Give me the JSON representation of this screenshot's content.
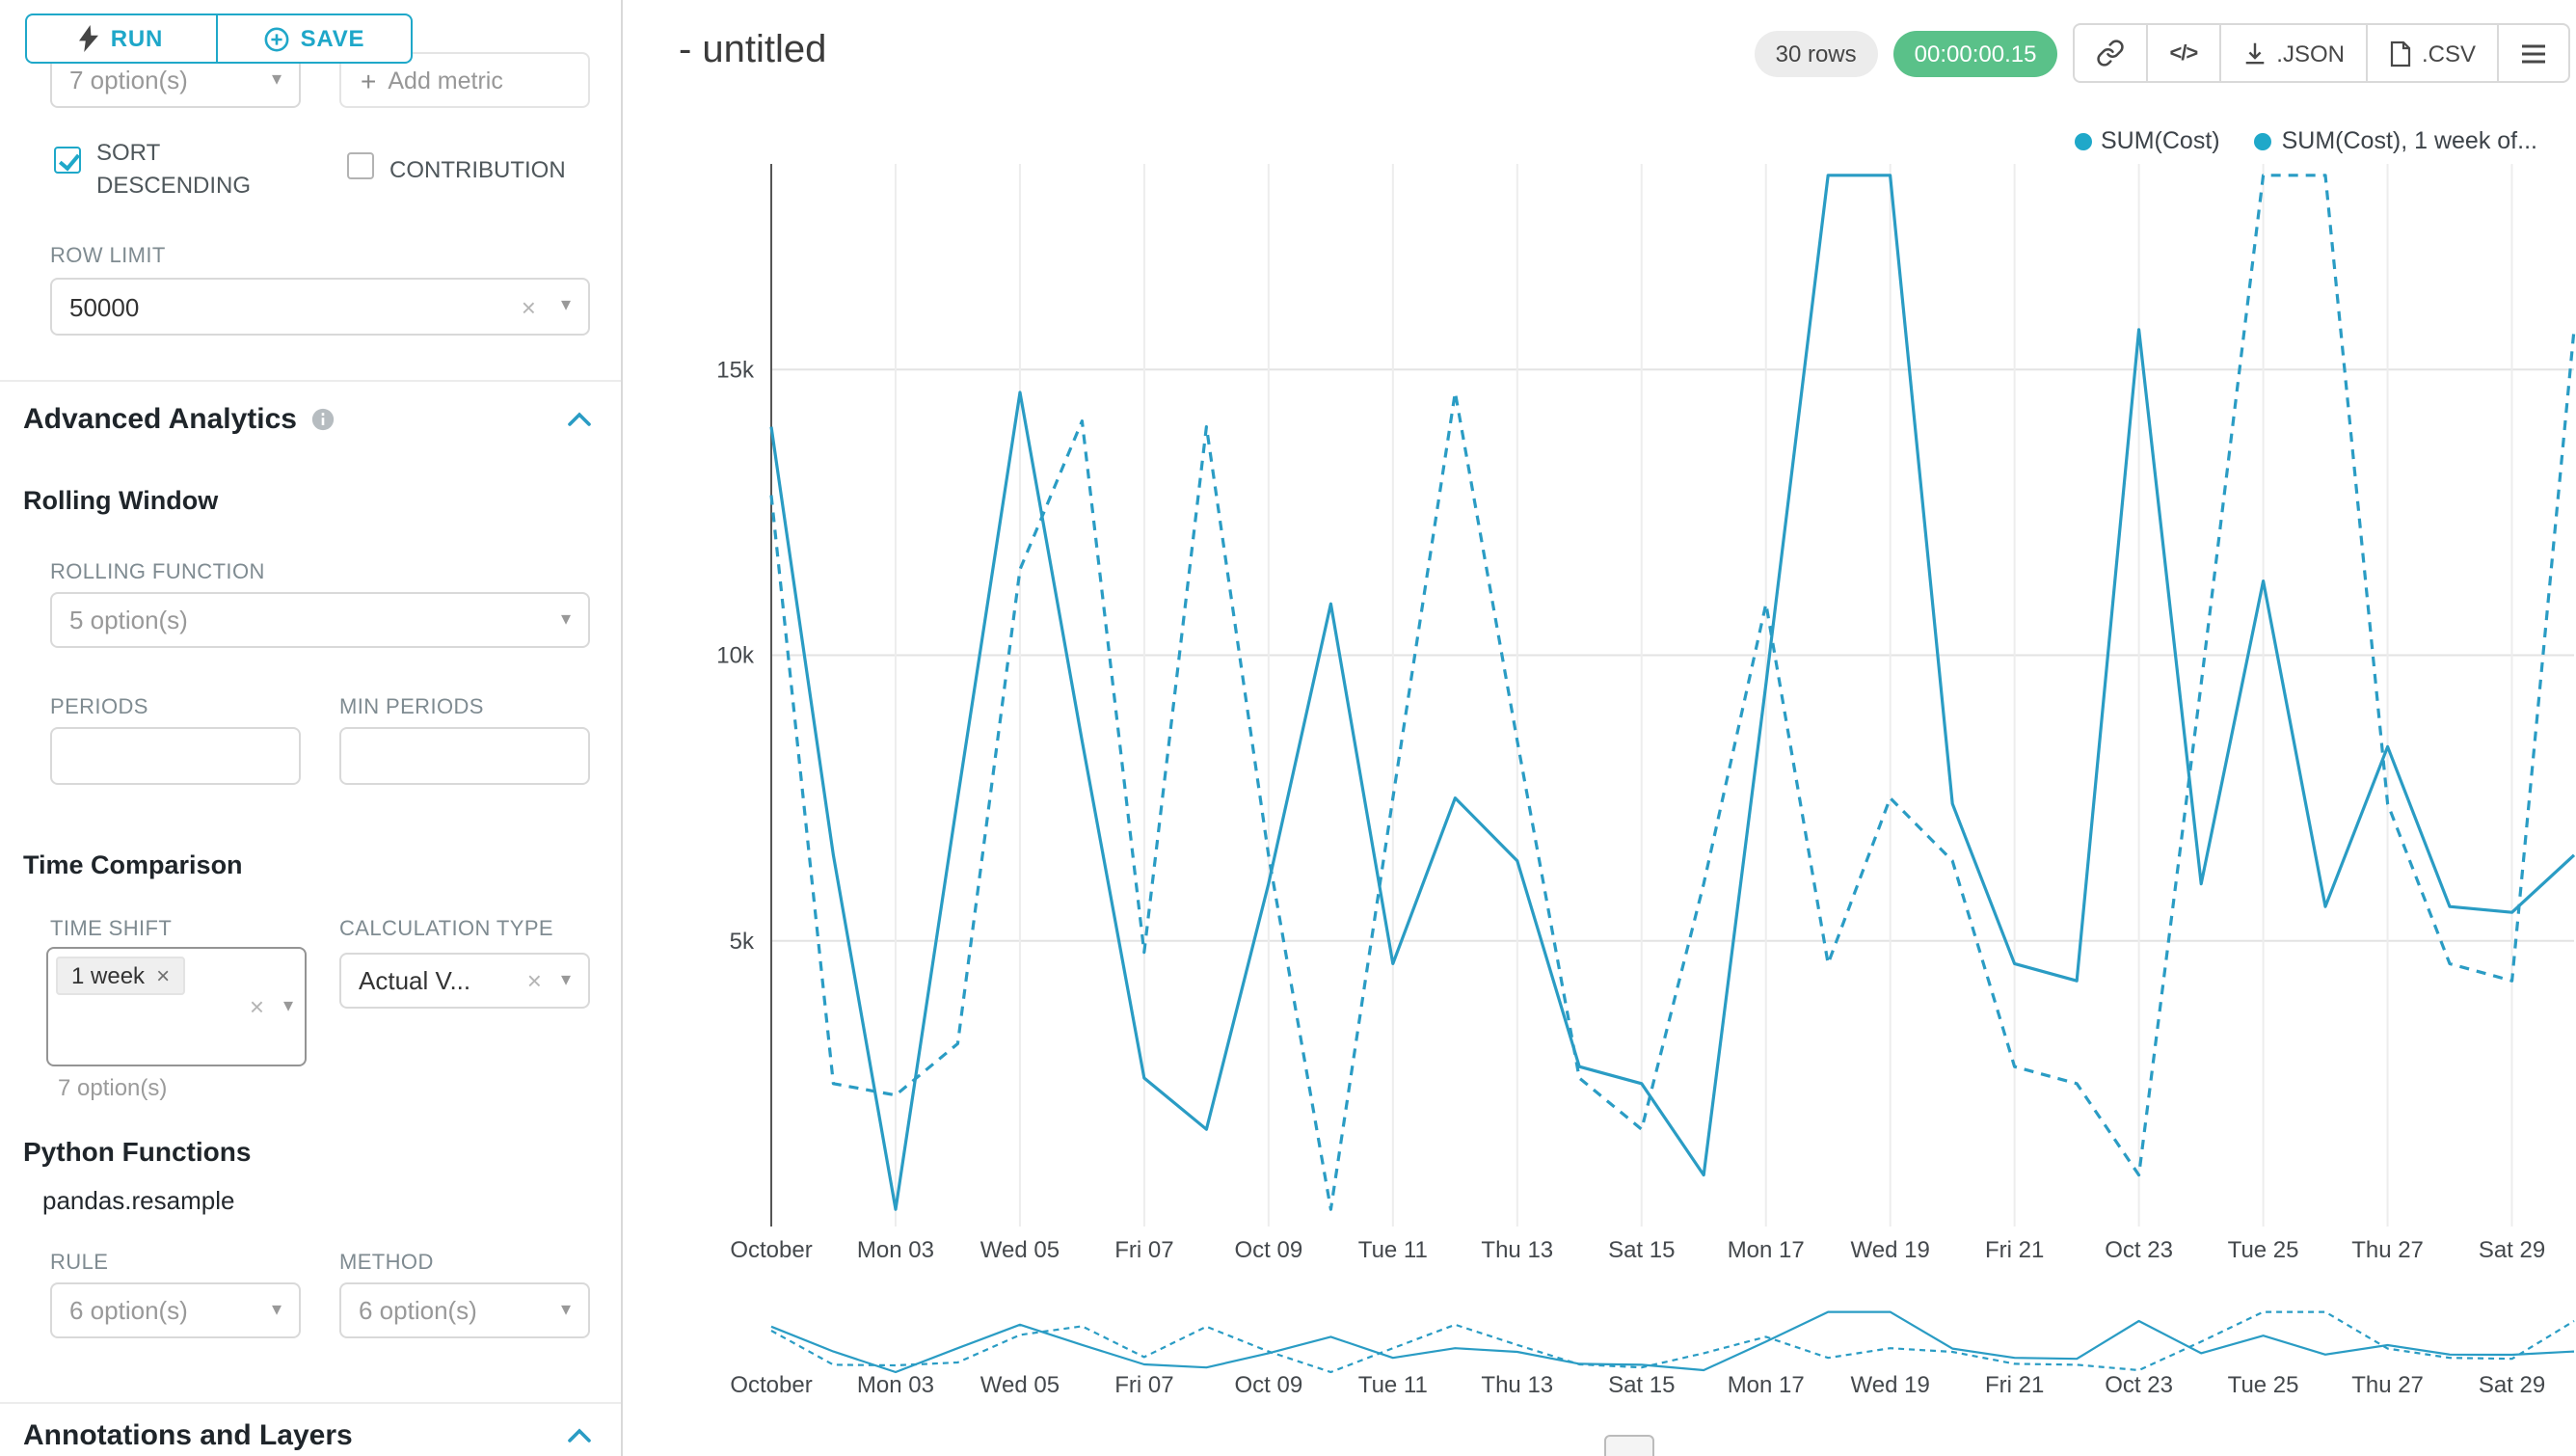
{
  "colors": {
    "accent": "#20a7c9",
    "series_line": "#2a9cc4",
    "legend_dot": "#1fa8c9",
    "timer_green": "#5ac189"
  },
  "toolbar": {
    "run_label": "RUN",
    "save_label": "SAVE"
  },
  "controls": {
    "metrics_value": "7 option(s)",
    "add_metric_label": "Add metric",
    "sort_descending_label": "SORT DESCENDING",
    "contribution_label": "CONTRIBUTION",
    "row_limit_label": "ROW LIMIT",
    "row_limit_value": "50000",
    "advanced_analytics_title": "Advanced Analytics",
    "rolling_window_title": "Rolling Window",
    "rolling_function_label": "ROLLING FUNCTION",
    "rolling_function_value": "5 option(s)",
    "periods_label": "PERIODS",
    "min_periods_label": "MIN PERIODS",
    "time_comparison_title": "Time Comparison",
    "time_shift_label": "TIME SHIFT",
    "time_shift_tag": "1 week",
    "time_shift_hint": "7 option(s)",
    "calculation_type_label": "CALCULATION TYPE",
    "calculation_type_value": "Actual V...",
    "python_functions_title": "Python Functions",
    "pandas_resample_label": "pandas.resample",
    "rule_label": "RULE",
    "rule_value": "6 option(s)",
    "method_label": "METHOD",
    "method_value": "6 option(s)",
    "annotations_title": "Annotations and Layers"
  },
  "header": {
    "title": "- untitled",
    "rows_badge": "30 rows",
    "timer_badge": "00:00:00.15",
    "export_json_label": ".JSON",
    "export_csv_label": ".CSV"
  },
  "chart_data": {
    "type": "line",
    "title": "",
    "xlabel": "",
    "ylabel": "",
    "grid": true,
    "legend_position": "top-right",
    "ylim": [
      0,
      18600
    ],
    "yticks": [
      {
        "v": 5000,
        "label": "5k"
      },
      {
        "v": 10000,
        "label": "10k"
      },
      {
        "v": 15000,
        "label": "15k"
      }
    ],
    "x": [
      "Oct 01",
      "Oct 02",
      "Oct 03",
      "Oct 04",
      "Oct 05",
      "Oct 06",
      "Oct 07",
      "Oct 08",
      "Oct 09",
      "Oct 10",
      "Oct 11",
      "Oct 12",
      "Oct 13",
      "Oct 14",
      "Oct 15",
      "Oct 16",
      "Oct 17",
      "Oct 18",
      "Oct 19",
      "Oct 20",
      "Oct 21",
      "Oct 22",
      "Oct 23",
      "Oct 24",
      "Oct 25",
      "Oct 26",
      "Oct 27",
      "Oct 28",
      "Oct 29",
      "Oct 30"
    ],
    "x_tick_labels": [
      "October",
      "Mon 03",
      "Wed 05",
      "Fri 07",
      "Oct 09",
      "Tue 11",
      "Thu 13",
      "Sat 15",
      "Mon 17",
      "Wed 19",
      "Fri 21",
      "Oct 23",
      "Tue 25",
      "Thu 27",
      "Sat 29"
    ],
    "series": [
      {
        "name": "SUM(Cost)",
        "style": "solid",
        "color": "#2a9cc4",
        "values": [
          14000,
          6500,
          300,
          7500,
          14600,
          8500,
          2600,
          1700,
          6000,
          10900,
          4600,
          7500,
          6400,
          2800,
          2500,
          900,
          9500,
          18400,
          18400,
          7400,
          4600,
          4300,
          15700,
          6000,
          11300,
          5600,
          8400,
          5600,
          5500,
          6500
        ]
      },
      {
        "name": "SUM(Cost), 1 week of...",
        "style": "dashed",
        "color": "#2a9cc4",
        "values": [
          12800,
          2500,
          2300,
          3200,
          11500,
          14100,
          4800,
          14000,
          6500,
          300,
          7500,
          14600,
          8500,
          2600,
          1700,
          6000,
          10900,
          4600,
          7500,
          6400,
          2800,
          2500,
          900,
          9500,
          18400,
          18400,
          7400,
          4600,
          4300,
          15700
        ]
      }
    ]
  }
}
